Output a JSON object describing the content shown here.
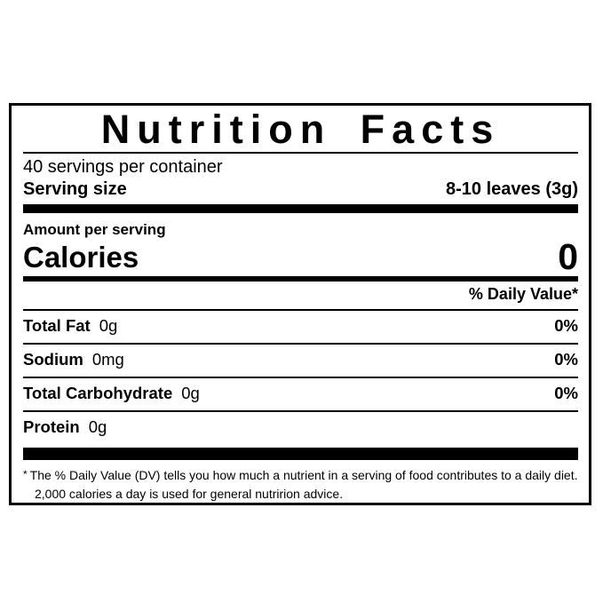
{
  "label": {
    "title": "Nutrition Facts",
    "servings_per_container": "40 servings per container",
    "serving_size_label": "Serving size",
    "serving_size_value": "8-10 leaves (3g)",
    "amount_per_serving": "Amount per serving",
    "calories_label": "Calories",
    "calories_value": "0",
    "daily_value_header": "% Daily Value*",
    "nutrients": [
      {
        "name": "Total Fat",
        "amount": "0g",
        "dv": "0%"
      },
      {
        "name": "Sodium",
        "amount": "0mg",
        "dv": "0%"
      },
      {
        "name": "Total Carbohydrate",
        "amount": "0g",
        "dv": "0%"
      },
      {
        "name": "Protein",
        "amount": "0g",
        "dv": ""
      }
    ],
    "footnote_marker": "*",
    "footnote_text": "The % Daily Value (DV) tells you how much a nutrient in a serving of food contributes to a daily diet. 2,000 calories a day is used for general nutririon advice."
  },
  "colors": {
    "ink": "#000000",
    "background": "#ffffff"
  }
}
